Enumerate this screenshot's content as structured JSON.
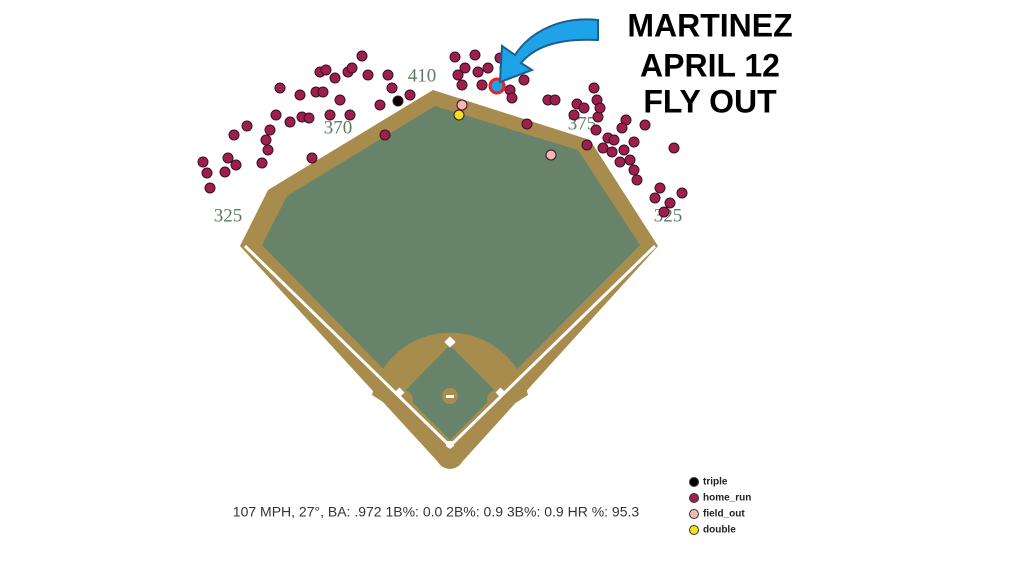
{
  "chart_data": {
    "type": "scatter",
    "xlim": [
      -258,
      258
    ],
    "ylim": [
      0,
      404
    ],
    "distance_labels": [
      {
        "text": "325",
        "x": -222,
        "y": 228
      },
      {
        "text": "370",
        "x": -112,
        "y": 316
      },
      {
        "text": "410",
        "x": -28,
        "y": 368
      },
      {
        "text": "375",
        "x": 132,
        "y": 320
      },
      {
        "text": "325",
        "x": 218,
        "y": 228
      }
    ],
    "series": [
      {
        "name": "triple",
        "color": "#000000",
        "x": [
          -52
        ],
        "y": [
          344
        ]
      },
      {
        "name": "home_run",
        "color": "#9c1f4e",
        "x": [
          -247,
          -243,
          -240,
          -222,
          -225,
          -214,
          -216,
          -203,
          -188,
          -182,
          -184,
          -180,
          -174,
          -170,
          -160,
          -150,
          -148,
          -141,
          -138,
          -134,
          -130,
          -124,
          -127,
          -120,
          -115,
          -110,
          -102,
          -98,
          -100,
          -88,
          -82,
          -70,
          -62,
          -58,
          -65,
          -40,
          5,
          8,
          12,
          15,
          25,
          28,
          32,
          38,
          50,
          55,
          60,
          62,
          74,
          77,
          98,
          105,
          124,
          127,
          134,
          137,
          144,
          146,
          147,
          148,
          153,
          158,
          164,
          170,
          174,
          176,
          180,
          184,
          187,
          195,
          205,
          210,
          214,
          220,
          224,
          232,
          162,
          172,
          184,
          150
        ],
        "y": [
          283,
          272,
          257,
          287,
          273,
          280,
          310,
          319,
          282,
          295,
          305,
          315,
          330,
          357,
          323,
          350,
          328,
          327,
          287,
          353,
          373,
          375,
          353,
          330,
          367,
          345,
          373,
          377,
          330,
          389,
          370,
          340,
          370,
          357,
          310,
          350,
          388,
          370,
          360,
          377,
          390,
          373,
          360,
          377,
          387,
          377,
          355,
          347,
          365,
          321,
          345,
          345,
          330,
          341,
          337,
          300,
          357,
          315,
          345,
          328,
          297,
          307,
          305,
          283,
          295,
          325,
          285,
          303,
          265,
          320,
          247,
          257,
          233,
          242,
          297,
          252,
          293,
          317,
          275,
          337
        ]
      },
      {
        "name": "field_out",
        "color": "#f4b7b4",
        "x": [
          12,
          101
        ],
        "y": [
          340,
          290
        ]
      },
      {
        "name": "double",
        "color": "#f2e01c",
        "x": [
          9
        ],
        "y": [
          330
        ]
      }
    ],
    "annotation": {
      "lines": [
        "MARTINEZ",
        "APRIL 12",
        "FLY OUT"
      ],
      "x": 47,
      "y": 359
    },
    "stats": "107 MPH, 27°, BA: .972 1B%: 0.0 2B%: 0.9 3B%: 0.9 HR %: 95.3"
  }
}
